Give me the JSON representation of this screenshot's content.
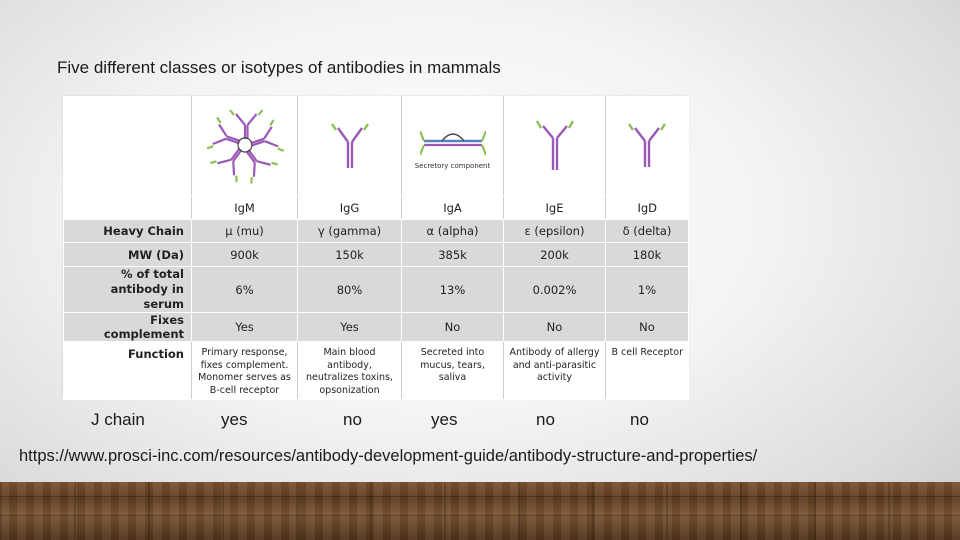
{
  "title": "Five different classes or isotypes of antibodies in mammals",
  "table": {
    "image_caption_iga": "Secretory component",
    "isotypes": [
      "IgM",
      "IgG",
      "IgA",
      "IgE",
      "IgD"
    ],
    "rows": [
      {
        "label": "Heavy Chain",
        "values": [
          "µ (mu)",
          "γ (gamma)",
          "α (alpha)",
          "ε (epsilon)",
          "δ (delta)"
        ]
      },
      {
        "label": "MW (Da)",
        "values": [
          "900k",
          "150k",
          "385k",
          "200k",
          "180k"
        ]
      },
      {
        "label": "% of total antibody in serum",
        "values": [
          "6%",
          "80%",
          "13%",
          "0.002%",
          "1%"
        ]
      },
      {
        "label": "Fixes complement",
        "values": [
          "Yes",
          "Yes",
          "No",
          "No",
          "No"
        ]
      },
      {
        "label": "Function",
        "values": [
          "Primary response, fixes complement. Monomer serves as B-cell receptor",
          "Main blood antibody, neutralizes toxins, opsonization",
          "Secreted into mucus, tears, saliva",
          "Antibody of allergy and anti-parasitic activity",
          "B cell Receptor"
        ]
      }
    ]
  },
  "j_chain": {
    "label": "J chain",
    "values": [
      "yes",
      "no",
      "yes",
      "no",
      "no"
    ]
  },
  "url": "https://www.prosci-inc.com/resources/antibody-development-guide/antibody-structure-and-properties/",
  "colors": {
    "heavy_chain": "#9b59b6",
    "light_chain": "#8cc152",
    "iga_link": "#5b7fc4",
    "row_gray": "#d9d9d9"
  }
}
